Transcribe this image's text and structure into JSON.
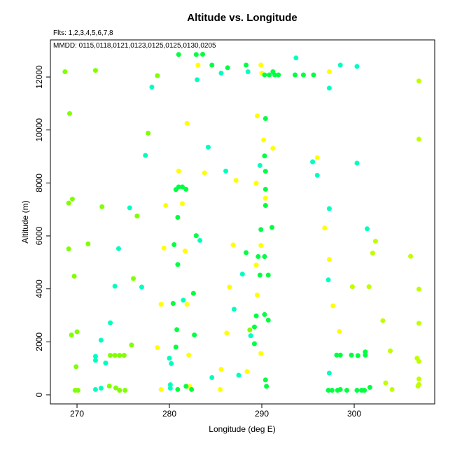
{
  "chart_data": {
    "type": "scatter",
    "title": "Altitude vs. Longitude",
    "subtitle": "Flts: 1,2,3,4,5,6,7,8",
    "annotation": "MMDD: 0115,0118,0121,0123,0125,0125,0130,0205",
    "x_label": "Longitude (deg E)",
    "y_label": "Altitude (m)",
    "xlim": [
      267.12,
      308.71
    ],
    "ylim": [
      -344,
      13402
    ],
    "xticks": [
      270,
      280,
      290,
      300
    ],
    "yticks": [
      0,
      2000,
      4000,
      6000,
      8000,
      10000,
      12000
    ],
    "series": [
      {
        "color": "#ffff00",
        "x": [
          283.1,
          289.9,
          290.0,
          297.3,
          289.5,
          281.9,
          290.2,
          291.2,
          296.0,
          281.0,
          283.8,
          287.2,
          289.4,
          290.4,
          281.4,
          279.6,
          296.8,
          286.9,
          289.9,
          279.4,
          281.7,
          297.3,
          289.4,
          286.5,
          289.5,
          297.7,
          279.1,
          281.9,
          286.2,
          298.4,
          278.7,
          282.1,
          289.9,
          285.6,
          288.4,
          279.1,
          282.2,
          285.5
        ],
        "values": [
          12450,
          12450,
          12150,
          12200,
          10530,
          10250,
          9620,
          9310,
          8950,
          8450,
          8380,
          8100,
          7990,
          7420,
          7220,
          7150,
          6300,
          5660,
          5640,
          5540,
          5430,
          5110,
          4900,
          4070,
          3770,
          3360,
          3420,
          3420,
          2330,
          2390,
          1780,
          1500,
          1560,
          960,
          880,
          200,
          310,
          200
        ]
      },
      {
        "color": "#bfff00",
        "x": [
          307.0,
          307.0,
          307.0,
          307.0,
          306.8,
          307.0,
          307.0,
          307.0,
          306.9,
          299.8,
          301.6,
          302.3,
          302.0,
          306.1,
          303.1,
          303.4,
          303.9,
          304.1
        ],
        "values": [
          11850,
          9650,
          3990,
          2700,
          1380,
          1260,
          600,
          390,
          330,
          4080,
          4080,
          5800,
          5350,
          5230,
          2800,
          450,
          1660,
          200
        ]
      },
      {
        "color": "#80ff00",
        "x": [
          268.7,
          269.2,
          269.1,
          269.5,
          269.1,
          269.7,
          269.4,
          270.0,
          269.9,
          269.8,
          270.1,
          277.7,
          276.5,
          276.1,
          275.9,
          273.5,
          274.2,
          274.6,
          275.2,
          273.6,
          274.1,
          274.6,
          275.1,
          272.0,
          278.7,
          272.7,
          271.2,
          288.7
        ],
        "values": [
          12200,
          10620,
          7240,
          7390,
          5510,
          4480,
          2260,
          2380,
          1060,
          170,
          170,
          9880,
          6750,
          4390,
          1880,
          330,
          260,
          170,
          170,
          1490,
          1490,
          1490,
          1490,
          12250,
          12050,
          7100,
          5700,
          2450
        ]
      },
      {
        "color": "#00ff40",
        "x": [
          281.0,
          282.9,
          283.6,
          284.6,
          286.3,
          288.3,
          290.3,
          290.8,
          291.2,
          291.4,
          291.8,
          293.6,
          294.5,
          295.6,
          290.4,
          290.3,
          290.4,
          290.4,
          290.4,
          291.1,
          289.9,
          290.3,
          289.6,
          289.8,
          290.7,
          288.3,
          290.3,
          290.7,
          289.4,
          289.2,
          289.2,
          290.4,
          290.5,
          280.7,
          281.0,
          281.4,
          281.8,
          280.9,
          280.5,
          280.9,
          282.6,
          280.4,
          282.7,
          280.8,
          280.7,
          282.9,
          281.8,
          280.9,
          282.4,
          298.1,
          298.5,
          299.7,
          300.4,
          301.2,
          301.2,
          297.2,
          297.6,
          298.2,
          298.5,
          299.2,
          300.3,
          300.8,
          301.1,
          301.7
        ],
        "values": [
          12850,
          12850,
          12860,
          12450,
          12350,
          12450,
          12080,
          12080,
          12200,
          12080,
          12080,
          12080,
          12080,
          12080,
          10430,
          9020,
          8440,
          7760,
          7150,
          6320,
          6240,
          5220,
          5220,
          4520,
          4520,
          5370,
          3030,
          2820,
          2980,
          2560,
          1930,
          560,
          320,
          7750,
          7850,
          7850,
          7760,
          6700,
          5670,
          4920,
          3830,
          3450,
          2260,
          2460,
          1800,
          6010,
          320,
          200,
          200,
          1500,
          1500,
          1500,
          1480,
          1500,
          1620,
          170,
          170,
          170,
          200,
          170,
          170,
          170,
          170,
          280
        ]
      },
      {
        "color": "#00ffbf",
        "x": [
          283.0,
          285.6,
          288.5,
          293.7,
          297.3,
          298.5,
          300.3,
          278.1,
          277.4,
          284.2,
          286.1,
          289.8,
          295.5,
          296.0,
          300.3,
          297.3,
          301.4,
          283.3,
          287.9,
          287.0,
          288.8,
          287.5,
          284.6,
          297.2,
          297.3,
          274.5,
          275.7,
          277.0,
          274.1,
          273.6,
          272.6,
          273.1,
          272.0,
          272.0,
          272.0,
          272.6,
          280.0,
          280.2,
          280.1,
          280.1,
          281.5
        ],
        "values": [
          11900,
          12150,
          12200,
          12720,
          11580,
          12450,
          12400,
          11620,
          9040,
          9350,
          8450,
          8660,
          8800,
          8290,
          8750,
          7030,
          6270,
          5830,
          4560,
          3230,
          2230,
          740,
          650,
          4340,
          820,
          5520,
          7060,
          4070,
          4100,
          2720,
          2060,
          1200,
          1450,
          1300,
          200,
          250,
          1380,
          1180,
          380,
          250,
          3570
        ]
      }
    ]
  }
}
